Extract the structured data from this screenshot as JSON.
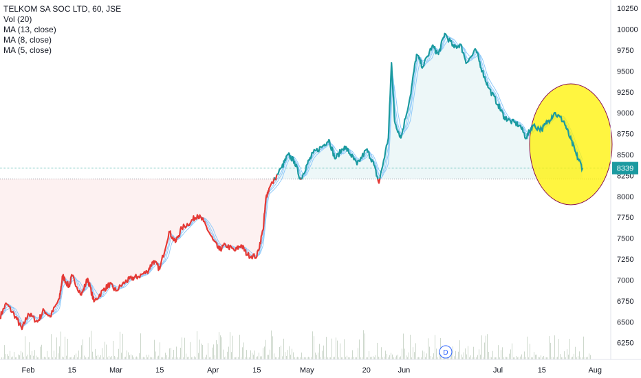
{
  "legend": {
    "title": "TELKOM SA SOC LTD, 60, JSE",
    "indicators": [
      "Vol (20)",
      "MA (13, close)",
      "MA (8, close)",
      "MA (5, close)"
    ]
  },
  "colors": {
    "up": "#1b9aa0",
    "down": "#e53935",
    "ma": "#90caf9",
    "highlight": "#fff200",
    "highlight_stroke": "#880e4f",
    "price_tag": "#1b9aa0",
    "volume": "#cdd8cc",
    "grid_line": "#26a69a"
  },
  "last_price_label": "8339",
  "event_marker": "D",
  "chart_data": {
    "type": "line",
    "title": "TELKOM SA SOC LTD, 60, JSE",
    "xlabel": "",
    "ylabel": "",
    "ylim": [
      6050,
      10350
    ],
    "y_ticks": [
      6250,
      6500,
      6750,
      7000,
      7250,
      7500,
      7750,
      8000,
      8250,
      8500,
      8750,
      9000,
      9250,
      9500,
      9750,
      10000,
      10250
    ],
    "x_ticks": [
      "Feb",
      "15",
      "Mar",
      "15",
      "Apr",
      "15",
      "May",
      "20",
      "Jun",
      "Jul",
      "15",
      "Aug"
    ],
    "x_tick_positions": [
      "2019-02-01",
      "2019-02-15",
      "2019-03-01",
      "2019-03-15",
      "2019-04-01",
      "2019-04-15",
      "2019-05-01",
      "2019-05-20",
      "2019-06-01",
      "2019-07-01",
      "2019-07-15",
      "2019-08-01"
    ],
    "x_range": [
      "2019-01-23",
      "2019-08-06"
    ],
    "reference_price": 8210,
    "last_price": 8339,
    "grid": false,
    "series": [
      {
        "name": "",
        "role": "close",
        "points": [
          [
            "2019-01-23",
            6560
          ],
          [
            "2019-01-25",
            6720
          ],
          [
            "2019-01-28",
            6560
          ],
          [
            "2019-01-30",
            6410
          ],
          [
            "2019-02-01",
            6600
          ],
          [
            "2019-02-04",
            6500
          ],
          [
            "2019-02-06",
            6640
          ],
          [
            "2019-02-08",
            6560
          ],
          [
            "2019-02-11",
            6780
          ],
          [
            "2019-02-12",
            7050
          ],
          [
            "2019-02-14",
            6920
          ],
          [
            "2019-02-15",
            7050
          ],
          [
            "2019-02-18",
            6820
          ],
          [
            "2019-02-20",
            7020
          ],
          [
            "2019-02-22",
            6740
          ],
          [
            "2019-02-25",
            6880
          ],
          [
            "2019-02-27",
            6950
          ],
          [
            "2019-03-01",
            6870
          ],
          [
            "2019-03-04",
            6980
          ],
          [
            "2019-03-06",
            7020
          ],
          [
            "2019-03-08",
            7040
          ],
          [
            "2019-03-11",
            7100
          ],
          [
            "2019-03-13",
            7230
          ],
          [
            "2019-03-15",
            7130
          ],
          [
            "2019-03-18",
            7580
          ],
          [
            "2019-03-20",
            7450
          ],
          [
            "2019-03-22",
            7620
          ],
          [
            "2019-03-25",
            7700
          ],
          [
            "2019-03-27",
            7780
          ],
          [
            "2019-03-29",
            7700
          ],
          [
            "2019-04-01",
            7480
          ],
          [
            "2019-04-03",
            7360
          ],
          [
            "2019-04-05",
            7420
          ],
          [
            "2019-04-08",
            7350
          ],
          [
            "2019-04-10",
            7420
          ],
          [
            "2019-04-12",
            7300
          ],
          [
            "2019-04-15",
            7280
          ],
          [
            "2019-04-17",
            7600
          ],
          [
            "2019-04-18",
            8000
          ],
          [
            "2019-04-19",
            8100
          ],
          [
            "2019-04-23",
            8350
          ],
          [
            "2019-04-25",
            8500
          ],
          [
            "2019-04-27",
            8420
          ],
          [
            "2019-04-29",
            8200
          ],
          [
            "2019-05-01",
            8380
          ],
          [
            "2019-05-03",
            8520
          ],
          [
            "2019-05-06",
            8600
          ],
          [
            "2019-05-08",
            8680
          ],
          [
            "2019-05-10",
            8450
          ],
          [
            "2019-05-13",
            8600
          ],
          [
            "2019-05-15",
            8500
          ],
          [
            "2019-05-17",
            8380
          ],
          [
            "2019-05-20",
            8560
          ],
          [
            "2019-05-22",
            8420
          ],
          [
            "2019-05-24",
            8160
          ],
          [
            "2019-05-27",
            8700
          ],
          [
            "2019-05-28",
            9600
          ],
          [
            "2019-05-29",
            8900
          ],
          [
            "2019-05-31",
            8700
          ],
          [
            "2019-06-03",
            9200
          ],
          [
            "2019-06-05",
            9700
          ],
          [
            "2019-06-07",
            9550
          ],
          [
            "2019-06-10",
            9800
          ],
          [
            "2019-06-12",
            9700
          ],
          [
            "2019-06-14",
            9950
          ],
          [
            "2019-06-17",
            9780
          ],
          [
            "2019-06-19",
            9820
          ],
          [
            "2019-06-21",
            9600
          ],
          [
            "2019-06-24",
            9750
          ],
          [
            "2019-06-26",
            9500
          ],
          [
            "2019-06-28",
            9300
          ],
          [
            "2019-07-01",
            9100
          ],
          [
            "2019-07-03",
            8950
          ],
          [
            "2019-07-05",
            8900
          ],
          [
            "2019-07-08",
            8850
          ],
          [
            "2019-07-10",
            8700
          ],
          [
            "2019-07-12",
            8850
          ],
          [
            "2019-07-15",
            8800
          ],
          [
            "2019-07-17",
            8900
          ],
          [
            "2019-07-19",
            9000
          ],
          [
            "2019-07-22",
            8900
          ],
          [
            "2019-07-24",
            8700
          ],
          [
            "2019-07-26",
            8500
          ],
          [
            "2019-07-28",
            8339
          ]
        ]
      }
    ],
    "annotations": [
      "highlight ellipse around late-July decline",
      "D (dividend) marker in June"
    ]
  }
}
